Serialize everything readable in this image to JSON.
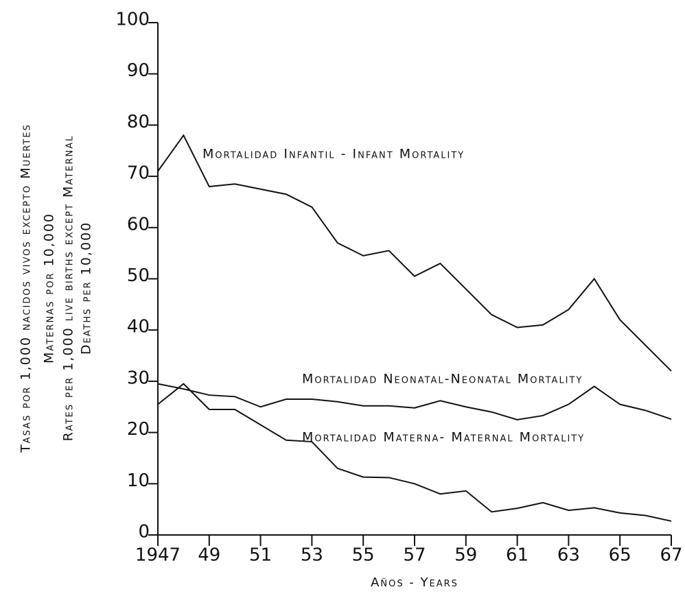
{
  "chart_data": {
    "type": "line",
    "x": [
      1947,
      1948,
      1949,
      1950,
      1951,
      1952,
      1953,
      1954,
      1955,
      1956,
      1957,
      1958,
      1959,
      1960,
      1961,
      1962,
      1963,
      1964,
      1965,
      1966,
      1967
    ],
    "series": [
      {
        "name": "Mortalidad Infantil - Infant Mortality",
        "color": "#111111",
        "values": [
          71,
          78,
          68,
          68.5,
          67.5,
          66.5,
          64,
          57,
          54.5,
          55.5,
          50.5,
          53,
          48,
          43,
          40.5,
          41,
          44,
          50,
          42,
          37,
          32
        ]
      },
      {
        "name": "Mortalidad Neonatal-Neonatal Mortality",
        "color": "#111111",
        "values": [
          29.5,
          28.5,
          27.3,
          27,
          25,
          26.5,
          26.5,
          26,
          25.2,
          25.2,
          24.8,
          26.2,
          25,
          24,
          22.5,
          23.3,
          25.5,
          29,
          25.5,
          24.3,
          22.6
        ]
      },
      {
        "name": "Mortalidad Materna- Maternal Mortality",
        "color": "#111111",
        "values": [
          25.5,
          29.5,
          24.5,
          24.5,
          21.5,
          18.5,
          18.2,
          13,
          11.3,
          11.2,
          10,
          8,
          8.6,
          4.5,
          5.2,
          6.3,
          4.8,
          5.3,
          4.3,
          3.8,
          2.7
        ]
      }
    ],
    "y_label": [
      "Tasas por 1,000 nacidos vivos excepto Muertes",
      "Maternas por 10,000",
      "Rates per 1,000 live births except Maternal",
      "Deaths per 10,000"
    ],
    "x_label": "Años - Years",
    "xlim": [
      1947,
      1967
    ],
    "xticks": [
      {
        "value": 1947,
        "label": "1947"
      },
      {
        "value": 1949,
        "label": "49"
      },
      {
        "value": 1951,
        "label": "51"
      },
      {
        "value": 1953,
        "label": "53"
      },
      {
        "value": 1955,
        "label": "55"
      },
      {
        "value": 1957,
        "label": "57"
      },
      {
        "value": 1959,
        "label": "59"
      },
      {
        "value": 1961,
        "label": "61"
      },
      {
        "value": 1963,
        "label": "63"
      },
      {
        "value": 1965,
        "label": "65"
      },
      {
        "value": 1967,
        "label": "67"
      }
    ],
    "ylim": [
      0,
      100
    ],
    "yticks": [
      0,
      10,
      20,
      30,
      40,
      50,
      60,
      70,
      80,
      90,
      100
    ]
  }
}
